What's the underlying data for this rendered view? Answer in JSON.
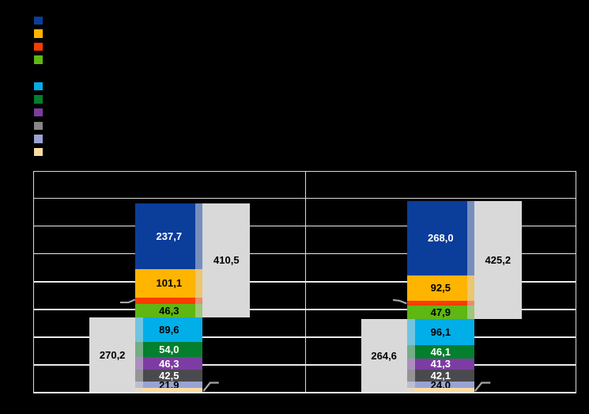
{
  "page": {
    "background": "#000000"
  },
  "legend": {
    "groups": [
      {
        "name": "upper-group",
        "items": [
          {
            "label": "",
            "color": "#0B3D9B"
          },
          {
            "label": "",
            "color": "#FFB400"
          },
          {
            "label": "",
            "color": "#FA3C00"
          },
          {
            "label": "",
            "color": "#5EB712"
          }
        ]
      },
      {
        "name": "lower-group",
        "items": [
          {
            "label": "",
            "color": "#00AEE8"
          },
          {
            "label": "",
            "color": "#047F2D"
          },
          {
            "label": "",
            "color": "#7D3CA3"
          },
          {
            "label": "",
            "color": "#868686"
          },
          {
            "label": "",
            "color": "#99A4D2"
          },
          {
            "label": "",
            "color": "#FADCA4"
          }
        ]
      }
    ]
  },
  "chart_data": {
    "type": "bar",
    "variant": "stacked-columns-with-subtotal-boxes",
    "title": "",
    "xlabel": "",
    "ylabel": "",
    "categories": [
      "",
      ""
    ],
    "column_headers": [
      "",
      ""
    ],
    "ylim": [
      0,
      700
    ],
    "gridline_step": 100,
    "grid": "on",
    "legend_position": "top-left",
    "upper_series": [
      {
        "name": "",
        "color": "#0B3D9B",
        "text": "#FFFFFF",
        "values": [
          237.7,
          268.0
        ],
        "labels": [
          "237,7",
          "268,0"
        ]
      },
      {
        "name": "",
        "color": "#FFB400",
        "text": "#000000",
        "values": [
          101.1,
          92.5
        ],
        "labels": [
          "101,1",
          "92,5"
        ]
      },
      {
        "name": "",
        "color": "#FA3C00",
        "text": "",
        "values": [
          25.4,
          16.8
        ],
        "labels": [
          "",
          ""
        ]
      },
      {
        "name": "",
        "color": "#5EB712",
        "text": "#000000",
        "values": [
          46.3,
          47.9
        ],
        "labels": [
          "46,3",
          "47,9"
        ]
      }
    ],
    "lower_series": [
      {
        "name": "",
        "color": "#00AEE8",
        "text": "#000000",
        "values": [
          89.6,
          96.1
        ],
        "labels": [
          "89,6",
          "96,1"
        ]
      },
      {
        "name": "",
        "color": "#047F2D",
        "text": "#FFFFFF",
        "values": [
          54.0,
          46.1
        ],
        "labels": [
          "54,0",
          "46,1"
        ]
      },
      {
        "name": "",
        "color": "#7D3CA3",
        "text": "#FFFFFF",
        "values": [
          46.3,
          41.3
        ],
        "labels": [
          "46,3",
          "41,3"
        ]
      },
      {
        "name": "",
        "color": "#4A4A4E",
        "text": "#FFFFFF",
        "values": [
          42.5,
          42.1
        ],
        "labels": [
          "42,5",
          "42,1"
        ]
      },
      {
        "name": "",
        "color": "#99A4D2",
        "text": "#000000",
        "values": [
          21.9,
          24.0
        ],
        "labels": [
          "21,9",
          "24,0"
        ]
      },
      {
        "name": "",
        "color": "#FADCA4",
        "text": "",
        "values": [
          15.9,
          15.0
        ],
        "labels": [
          "",
          ""
        ]
      }
    ],
    "upper_totals": {
      "color": "#D9D9D9",
      "text": "#000000",
      "values": [
        410.5,
        425.2
      ],
      "labels": [
        "410,5",
        "425,2"
      ]
    },
    "lower_totals": {
      "color": "#D9D9D9",
      "text": "#000000",
      "values": [
        270.2,
        264.6
      ],
      "labels": [
        "270,2",
        "264,6"
      ]
    },
    "callout_color": "#A6A6A6"
  }
}
